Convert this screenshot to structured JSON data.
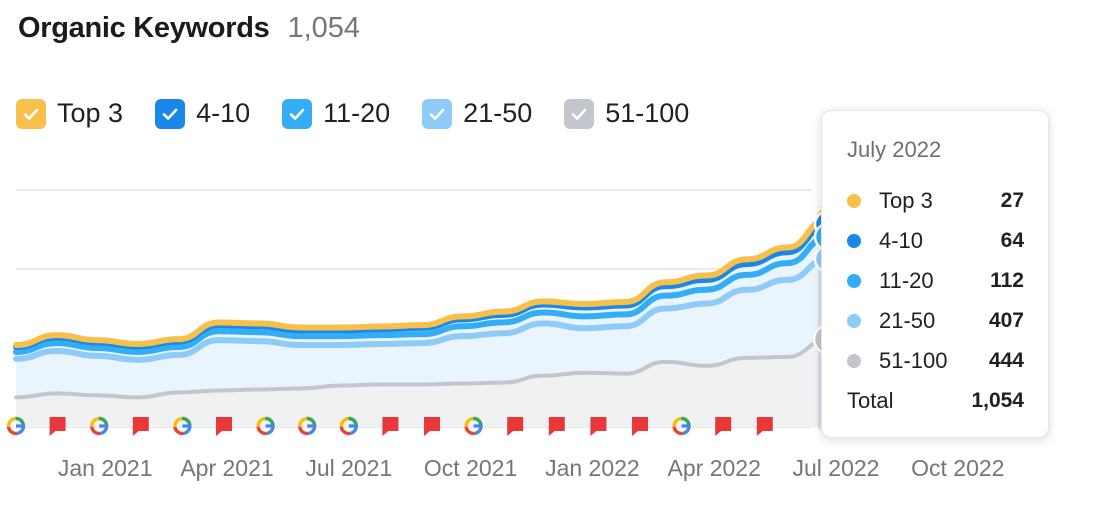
{
  "header": {
    "title": "Organic Keywords",
    "total": "1,054"
  },
  "legend": [
    {
      "label": "Top 3",
      "color": "#f7c04a",
      "checked": true
    },
    {
      "label": "4-10",
      "color": "#1a88e8",
      "checked": true
    },
    {
      "label": "11-20",
      "color": "#33adf5",
      "checked": true
    },
    {
      "label": "21-50",
      "color": "#8ecbf7",
      "checked": true
    },
    {
      "label": "51-100",
      "color": "#c4c6cd",
      "checked": true
    }
  ],
  "tooltip": {
    "date": "July 2022",
    "rows": [
      {
        "label": "Top 3",
        "value": "27",
        "color": "#f7c04a"
      },
      {
        "label": "4-10",
        "value": "64",
        "color": "#1a88e8"
      },
      {
        "label": "11-20",
        "value": "112",
        "color": "#33adf5"
      },
      {
        "label": "21-50",
        "value": "407",
        "color": "#8ecbf7"
      },
      {
        "label": "51-100",
        "value": "444",
        "color": "#c4c6cd"
      }
    ],
    "total_label": "Total",
    "total_value": "1,054"
  },
  "chart_data": {
    "type": "area",
    "stacked": true,
    "x": [
      "Nov 2020",
      "Dec 2020",
      "Jan 2021",
      "Feb 2021",
      "Mar 2021",
      "Apr 2021",
      "May 2021",
      "Jun 2021",
      "Jul 2021",
      "Aug 2021",
      "Sep 2021",
      "Oct 2021",
      "Nov 2021",
      "Dec 2021",
      "Jan 2022",
      "Feb 2022",
      "Mar 2022",
      "Apr 2022",
      "May 2022",
      "Jun 2022",
      "Jul 2022"
    ],
    "x_tick_labels": [
      "Jan 2021",
      "Apr 2021",
      "Jul 2021",
      "Oct 2021",
      "Jan 2022",
      "Apr 2022",
      "Jul 2022",
      "Oct 2022"
    ],
    "x_tick_months": [
      "Jan 2021",
      "Apr 2021",
      "Jul 2021",
      "Oct 2021",
      "Jan 2022",
      "Apr 2022",
      "Jul 2022",
      "Oct 2022"
    ],
    "series": [
      {
        "name": "51-100",
        "color": "#c4c6cd",
        "values": [
          150,
          170,
          160,
          150,
          175,
          185,
          190,
          195,
          210,
          215,
          215,
          220,
          225,
          260,
          275,
          270,
          330,
          310,
          350,
          355,
          444
        ]
      },
      {
        "name": "21-50",
        "color": "#8ecbf7",
        "values": [
          195,
          215,
          200,
          190,
          190,
          255,
          245,
          220,
          205,
          205,
          210,
          240,
          250,
          265,
          225,
          240,
          270,
          315,
          345,
          390,
          407
        ]
      },
      {
        "name": "11-20",
        "color": "#33adf5",
        "values": [
          35,
          40,
          40,
          40,
          40,
          45,
          45,
          45,
          45,
          45,
          45,
          50,
          55,
          55,
          60,
          60,
          65,
          70,
          75,
          85,
          112
        ]
      },
      {
        "name": "4-10",
        "color": "#1a88e8",
        "values": [
          25,
          28,
          28,
          28,
          28,
          30,
          30,
          30,
          30,
          30,
          32,
          35,
          38,
          40,
          45,
          45,
          48,
          50,
          55,
          55,
          64
        ]
      },
      {
        "name": "Top 3",
        "color": "#f7c04a",
        "values": [
          10,
          12,
          12,
          12,
          12,
          14,
          14,
          14,
          14,
          14,
          14,
          15,
          16,
          16,
          18,
          18,
          20,
          22,
          24,
          24,
          27
        ]
      }
    ],
    "ylim": [
      0,
      1200
    ],
    "grid": true,
    "highlight_index": 20,
    "event_markers": [
      "google",
      "flag",
      "google",
      "flag",
      "google",
      "flag",
      "google",
      "google",
      "google",
      "flag",
      "flag",
      "google",
      "flag",
      "flag",
      "flag",
      "flag",
      "google",
      "flag",
      "flag"
    ]
  }
}
